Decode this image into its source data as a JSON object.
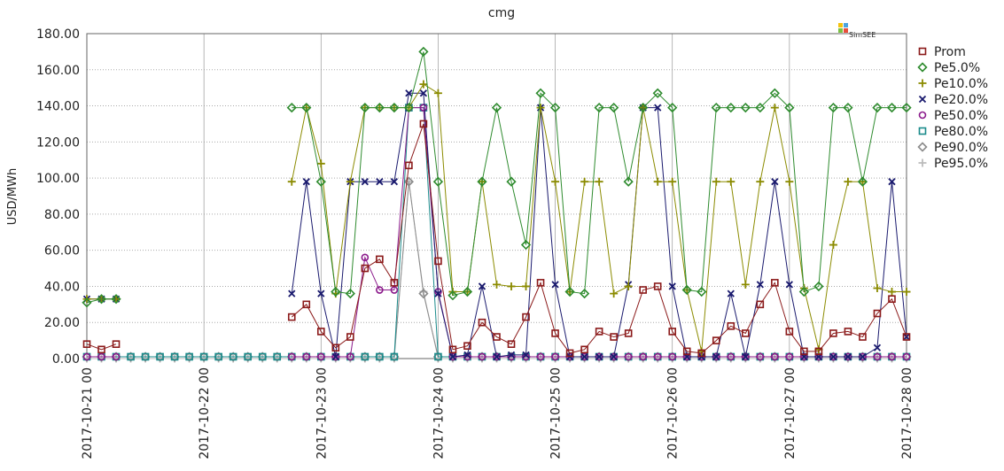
{
  "chart_data": {
    "type": "line",
    "title": "cmg",
    "ylabel": "USD/MWh",
    "logo": "SimSEE",
    "x": [
      "2017-10-21 00",
      "2017-10-21 03",
      "2017-10-21 06",
      "2017-10-21 09",
      "2017-10-21 12",
      "2017-10-21 15",
      "2017-10-21 18",
      "2017-10-21 21",
      "2017-10-22 00",
      "2017-10-22 03",
      "2017-10-22 06",
      "2017-10-22 09",
      "2017-10-22 12",
      "2017-10-22 15",
      "2017-10-22 18",
      "2017-10-22 21",
      "2017-10-23 00",
      "2017-10-23 03",
      "2017-10-23 06",
      "2017-10-23 09",
      "2017-10-23 12",
      "2017-10-23 15",
      "2017-10-23 18",
      "2017-10-23 21",
      "2017-10-24 00",
      "2017-10-24 03",
      "2017-10-24 06",
      "2017-10-24 09",
      "2017-10-24 12",
      "2017-10-24 15",
      "2017-10-24 18",
      "2017-10-24 21",
      "2017-10-25 00",
      "2017-10-25 03",
      "2017-10-25 06",
      "2017-10-25 09",
      "2017-10-25 12",
      "2017-10-25 15",
      "2017-10-25 18",
      "2017-10-25 21",
      "2017-10-26 00",
      "2017-10-26 03",
      "2017-10-26 06",
      "2017-10-26 09",
      "2017-10-26 12",
      "2017-10-26 15",
      "2017-10-26 18",
      "2017-10-26 21",
      "2017-10-27 00",
      "2017-10-27 03",
      "2017-10-27 06",
      "2017-10-27 09",
      "2017-10-27 12",
      "2017-10-27 15",
      "2017-10-27 18",
      "2017-10-27 21",
      "2017-10-28 00"
    ],
    "xlim": [
      "2017-10-21 00",
      "2017-10-28 00"
    ],
    "xticks": [
      "2017-10-21 00",
      "2017-10-22 00",
      "2017-10-23 00",
      "2017-10-24 00",
      "2017-10-25 00",
      "2017-10-26 00",
      "2017-10-27 00",
      "2017-10-28 00"
    ],
    "ylim": [
      0,
      180
    ],
    "yticks": [
      {
        "value": 0,
        "label": "0.00"
      },
      {
        "value": 20,
        "label": "20.00"
      },
      {
        "value": 40,
        "label": "40.00"
      },
      {
        "value": 60,
        "label": "60.00"
      },
      {
        "value": 80,
        "label": "80.00"
      },
      {
        "value": 100,
        "label": "100.00"
      },
      {
        "value": 120,
        "label": "120.00"
      },
      {
        "value": 140,
        "label": "140.00"
      },
      {
        "value": 160,
        "label": "160.00"
      },
      {
        "value": 180,
        "label": "180.00"
      }
    ],
    "grid": true,
    "series": [
      {
        "name": "Prom",
        "color": "#8b1a1a",
        "marker": "square",
        "values": [
          8,
          5,
          8,
          null,
          null,
          null,
          null,
          null,
          null,
          null,
          null,
          null,
          null,
          null,
          23,
          30,
          15,
          6,
          12,
          50,
          55,
          42,
          107,
          130,
          54,
          5,
          7,
          20,
          12,
          8,
          23,
          42,
          14,
          3,
          5,
          15,
          12,
          14,
          38,
          40,
          15,
          4,
          3,
          10,
          18,
          14,
          30,
          42,
          15,
          4,
          4,
          14,
          15,
          12,
          25,
          33,
          12
        ]
      },
      {
        "name": "Pe5.0%",
        "color": "#2e8b2e",
        "marker": "diamond",
        "values": [
          31,
          33,
          33,
          null,
          null,
          null,
          null,
          null,
          null,
          null,
          null,
          null,
          null,
          null,
          139,
          139,
          98,
          37,
          36,
          139,
          139,
          139,
          139,
          170,
          98,
          35,
          37,
          98,
          139,
          98,
          63,
          147,
          139,
          37,
          36,
          139,
          139,
          98,
          139,
          147,
          139,
          38,
          37,
          139,
          139,
          139,
          139,
          147,
          139,
          37,
          40,
          139,
          139,
          98,
          139,
          139,
          139
        ]
      },
      {
        "name": "Pe10.0%",
        "color": "#8b8b00",
        "marker": "plus",
        "values": [
          33,
          33,
          33,
          null,
          null,
          null,
          null,
          null,
          null,
          null,
          null,
          null,
          null,
          null,
          98,
          139,
          108,
          36,
          98,
          139,
          139,
          139,
          139,
          152,
          147,
          37,
          37,
          98,
          41,
          40,
          40,
          139,
          98,
          37,
          98,
          98,
          36,
          40,
          139,
          98,
          98,
          38,
          4,
          98,
          98,
          41,
          98,
          139,
          98,
          39,
          5,
          63,
          98,
          98,
          39,
          37,
          37
        ]
      },
      {
        "name": "Pe20.0%",
        "color": "#1a1a6e",
        "marker": "cross",
        "values": [
          33,
          33,
          33,
          null,
          null,
          null,
          null,
          null,
          null,
          null,
          null,
          null,
          null,
          null,
          36,
          98,
          36,
          1,
          98,
          98,
          98,
          98,
          147,
          147,
          36,
          1,
          2,
          40,
          1,
          2,
          2,
          139,
          41,
          1,
          1,
          1,
          1,
          41,
          139,
          139,
          40,
          1,
          1,
          1,
          36,
          1,
          41,
          98,
          41,
          1,
          1,
          1,
          1,
          1,
          6,
          98,
          12
        ]
      },
      {
        "name": "Pe50.0%",
        "color": "#8b1a8b",
        "marker": "circle",
        "values": [
          1,
          1,
          1,
          null,
          null,
          null,
          null,
          null,
          null,
          null,
          null,
          null,
          null,
          null,
          1,
          1,
          1,
          1,
          1,
          56,
          38,
          38,
          139,
          139,
          37,
          1,
          1,
          1,
          1,
          1,
          1,
          1,
          1,
          1,
          1,
          1,
          1,
          1,
          1,
          1,
          1,
          1,
          1,
          1,
          1,
          1,
          1,
          1,
          1,
          1,
          1,
          1,
          1,
          1,
          1,
          1,
          1
        ]
      },
      {
        "name": "Pe80.0%",
        "color": "#1a8b8b",
        "marker": "square",
        "values": [
          1,
          1,
          1,
          1,
          1,
          1,
          1,
          1,
          1,
          1,
          1,
          1,
          1,
          1,
          1,
          1,
          1,
          1,
          1,
          1,
          1,
          1,
          139,
          139,
          1,
          1,
          1,
          1,
          1,
          1,
          1,
          1,
          1,
          1,
          1,
          1,
          1,
          1,
          1,
          1,
          1,
          1,
          1,
          1,
          1,
          1,
          1,
          1,
          1,
          1,
          1,
          1,
          1,
          1,
          1,
          1,
          1
        ]
      },
      {
        "name": "Pe90.0%",
        "color": "#8b8b8b",
        "marker": "diamond",
        "values": [
          1,
          1,
          1,
          1,
          1,
          1,
          1,
          1,
          1,
          1,
          1,
          1,
          1,
          1,
          1,
          1,
          1,
          1,
          1,
          1,
          1,
          1,
          98,
          36,
          1,
          1,
          1,
          1,
          1,
          1,
          1,
          1,
          1,
          1,
          1,
          1,
          1,
          1,
          1,
          1,
          1,
          1,
          1,
          1,
          1,
          1,
          1,
          1,
          1,
          1,
          1,
          1,
          1,
          1,
          1,
          1,
          1
        ]
      },
      {
        "name": "Pe95.0%",
        "color": "#bbbbbb",
        "marker": "plus",
        "values": [
          0,
          0,
          0,
          0,
          0,
          0,
          0,
          0,
          0,
          0,
          0,
          0,
          0,
          0,
          0,
          0,
          0,
          0,
          0,
          0,
          0,
          0,
          98,
          37,
          0,
          0,
          0,
          0,
          0,
          0,
          0,
          0,
          0,
          0,
          0,
          0,
          0,
          0,
          0,
          0,
          0,
          0,
          0,
          0,
          0,
          0,
          0,
          0,
          0,
          0,
          0,
          0,
          0,
          0,
          0,
          0,
          0
        ]
      }
    ]
  }
}
